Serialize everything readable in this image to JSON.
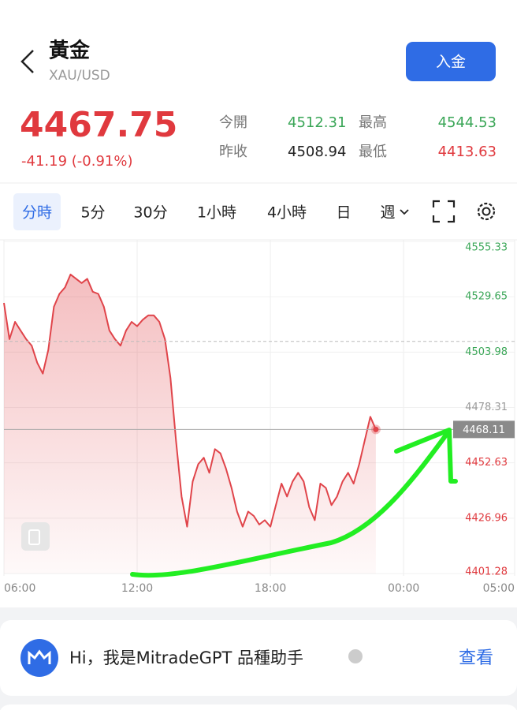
{
  "header": {
    "title": "黃金",
    "subtitle": "XAU/USD",
    "button": "入金"
  },
  "quote": {
    "price": "4467.75",
    "change": "-41.19 (-0.91%)",
    "stats": [
      {
        "label": "今開",
        "value": "4512.31",
        "color": "#3aa657"
      },
      {
        "label": "最高",
        "value": "4544.53",
        "color": "#3aa657"
      },
      {
        "label": "昨收",
        "value": "4508.94",
        "color": "#222222"
      },
      {
        "label": "最低",
        "value": "4413.63",
        "color": "#e0393e"
      }
    ]
  },
  "tabs": [
    "分時",
    "5分",
    "30分",
    "1小時",
    "4小時",
    "日",
    "週"
  ],
  "chart_data": {
    "type": "line",
    "x": [
      "06:00",
      "06:15",
      "06:30",
      "06:45",
      "07:00",
      "07:15",
      "07:30",
      "07:45",
      "08:00",
      "08:15",
      "08:30",
      "08:45",
      "09:00",
      "09:15",
      "09:30",
      "09:45",
      "10:00",
      "10:15",
      "10:30",
      "10:45",
      "11:00",
      "11:15",
      "11:30",
      "11:45",
      "12:00",
      "12:15",
      "12:30",
      "12:45",
      "13:00",
      "13:15",
      "13:30",
      "13:45",
      "14:00",
      "14:15",
      "14:30",
      "14:45",
      "15:00",
      "15:15",
      "15:30",
      "15:45",
      "16:00",
      "16:15",
      "16:30",
      "16:45",
      "17:00",
      "17:15",
      "17:30",
      "17:45",
      "18:00",
      "18:15",
      "18:30",
      "18:45",
      "19:00",
      "19:15",
      "19:30",
      "19:45",
      "20:00",
      "20:15",
      "20:30",
      "20:45",
      "21:00",
      "21:15",
      "21:30",
      "21:45",
      "22:00",
      "22:15",
      "22:30",
      "22:45"
    ],
    "values": [
      4526.8,
      4510,
      4518,
      4514,
      4510,
      4507,
      4499,
      4494,
      4505,
      4525,
      4531,
      4534,
      4540,
      4538,
      4536,
      4538,
      4532,
      4531,
      4525,
      4514,
      4510,
      4507,
      4514,
      4518,
      4516,
      4519,
      4521,
      4521,
      4518,
      4510,
      4492,
      4463,
      4437,
      4423,
      4444,
      4452,
      4455,
      4448,
      4459,
      4457,
      4450,
      4441,
      4430,
      4423,
      4430,
      4428,
      4424,
      4426,
      4423,
      4433,
      4443,
      4437,
      4444,
      4448,
      4444,
      4432,
      4426,
      4443,
      4441,
      4433,
      4437,
      4444,
      4448,
      4443,
      4452,
      4463,
      4474,
      4468.11
    ],
    "color": "#e0444a",
    "ylim": [
      4401.28,
      4555.33
    ],
    "yticks": [
      4401.28,
      4426.96,
      4452.63,
      4478.31,
      4503.98,
      4529.65,
      4555.33
    ],
    "ytick_colors": [
      "#e0393e",
      "#e0393e",
      "#e0393e",
      "#999999",
      "#3aa657",
      "#3aa657",
      "#3aa657"
    ],
    "xticks": [
      "06:00",
      "12:00",
      "18:00",
      "00:00",
      "05:00"
    ],
    "reference_line": 4508.94,
    "last_value": 4468.11,
    "grid": true
  },
  "assistant": {
    "text": "Hi，我是MitradeGPT 品種助手",
    "action": "查看"
  }
}
